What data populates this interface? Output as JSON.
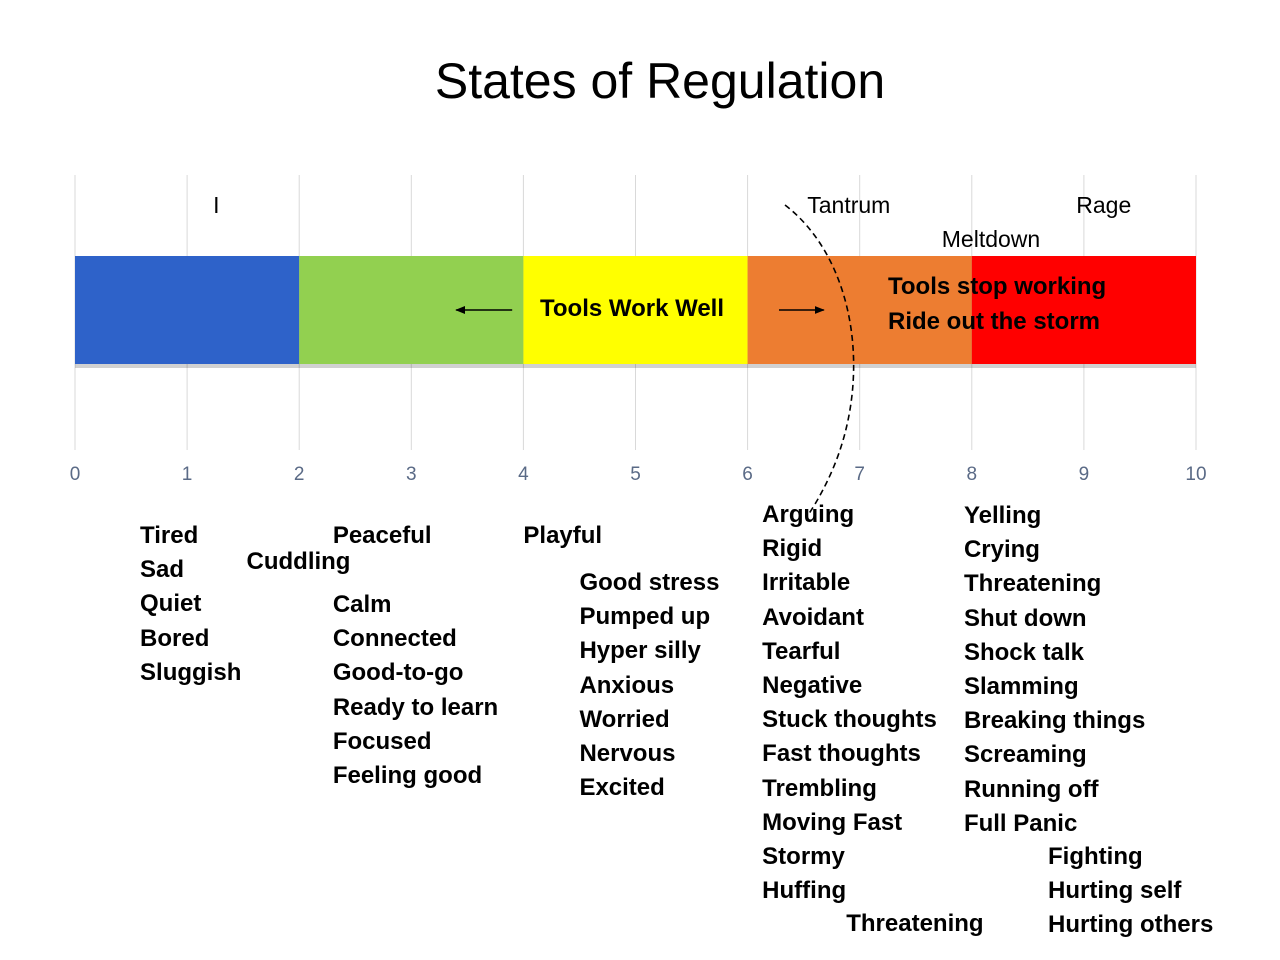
{
  "title": "States of Regulation",
  "chart_data": {
    "type": "bar",
    "orientation": "horizontal-stacked",
    "xlim": [
      0,
      10
    ],
    "ticks": [
      "0",
      "1",
      "2",
      "3",
      "4",
      "5",
      "6",
      "7",
      "8",
      "9",
      "10"
    ],
    "grid": true,
    "segments": [
      {
        "start": 0,
        "end": 2,
        "color": "#2e62c9"
      },
      {
        "start": 2,
        "end": 4,
        "color": "#92d050"
      },
      {
        "start": 4,
        "end": 6,
        "color": "#ffff00"
      },
      {
        "start": 6,
        "end": 8,
        "color": "#ed7d31"
      },
      {
        "start": 8,
        "end": 10,
        "color": "#ff0000"
      }
    ],
    "zone_labels": [
      {
        "text": "I",
        "x": 1.25
      },
      {
        "text": "Tantrum",
        "x": 6.55
      },
      {
        "text": "Meltdown",
        "x": 7.75
      },
      {
        "text": "Rage",
        "x": 8.95
      }
    ],
    "bar_annotations": {
      "center": "Tools Work Well",
      "right_line1": "Tools stop working",
      "right_line2": "Ride out the storm"
    },
    "arrows": [
      {
        "from": 3.9,
        "to": 3.4
      },
      {
        "from": 6.28,
        "to": 6.68
      }
    ],
    "feeling_groups": [
      {
        "x": 0.58,
        "items": [
          "Tired",
          "Sad",
          "Quiet",
          "Bored",
          "Sluggish"
        ]
      },
      {
        "x": 1.53,
        "items": [
          "Cuddling"
        ]
      },
      {
        "x": 2.3,
        "items": [
          "Peaceful"
        ]
      },
      {
        "x": 2.3,
        "items": [
          "Calm",
          "Connected",
          "Good-to-go",
          "Ready to learn",
          "Focused",
          "Feeling good"
        ]
      },
      {
        "x": 4.0,
        "items": [
          "Playful"
        ]
      },
      {
        "x": 4.5,
        "items": [
          "Good stress",
          "Pumped up",
          "Hyper silly",
          "Anxious",
          "Worried",
          "Nervous",
          "Excited"
        ]
      },
      {
        "x": 6.13,
        "items": [
          "Arguing",
          "Rigid",
          "Irritable",
          "Avoidant",
          "Tearful",
          "Negative",
          "Stuck thoughts",
          "Fast thoughts",
          "Trembling",
          "Moving Fast",
          "Stormy",
          "Huffing"
        ]
      },
      {
        "x": 6.88,
        "items": [
          "Threatening"
        ]
      },
      {
        "x": 7.93,
        "items": [
          "Yelling",
          "Crying",
          "Threatening",
          "Shut down",
          "Shock talk",
          "Slamming",
          "Breaking things",
          "Screaming",
          "Running off",
          "Full Panic"
        ]
      },
      {
        "x": 8.68,
        "items": [
          "Fighting",
          "Hurting self",
          "Hurting others"
        ]
      }
    ]
  }
}
